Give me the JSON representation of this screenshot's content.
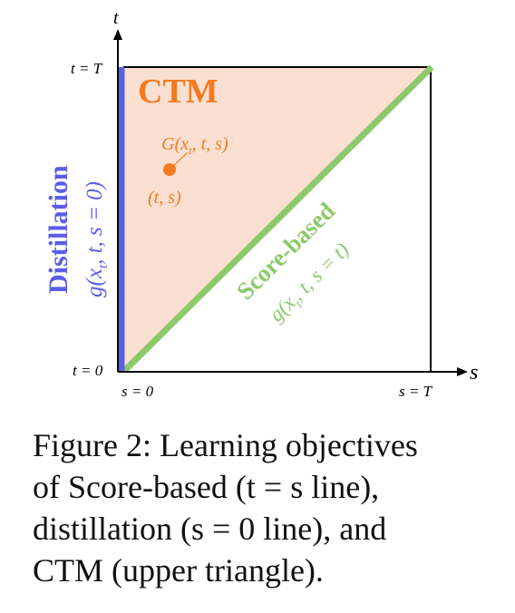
{
  "diagram": {
    "axes": {
      "t_axis_label": "t",
      "s_axis_label": "s",
      "t_top": "t = T",
      "t_bottom": "t = 0",
      "s_left": "s = 0",
      "s_right": "s = T"
    },
    "ctm_title": "CTM",
    "point_label": "(t, s)",
    "point_function": "G(x",
    "point_function_sub": "t",
    "point_function_rest": ", t, s)",
    "distillation": {
      "title": "Distillation",
      "formula_a": "g(x",
      "formula_sub": "t",
      "formula_b": ", t, s = 0)"
    },
    "score_based": {
      "title": "Score-based",
      "formula_a": "g(x",
      "formula_sub": "t",
      "formula_b": ", t, s = t)"
    },
    "colors": {
      "ctm_fill": "#fbe0d1",
      "ctm_text": "#f47a20",
      "distillation": "#5b5ee6",
      "score_based": "#8cc96b",
      "point": "#f47a20"
    }
  },
  "caption": {
    "line1": "Figure 2: Learning objectives",
    "line2": "of Score-based (t = s line),",
    "line3": "distillation (s = 0 line), and",
    "line4": "CTM (upper triangle)."
  }
}
